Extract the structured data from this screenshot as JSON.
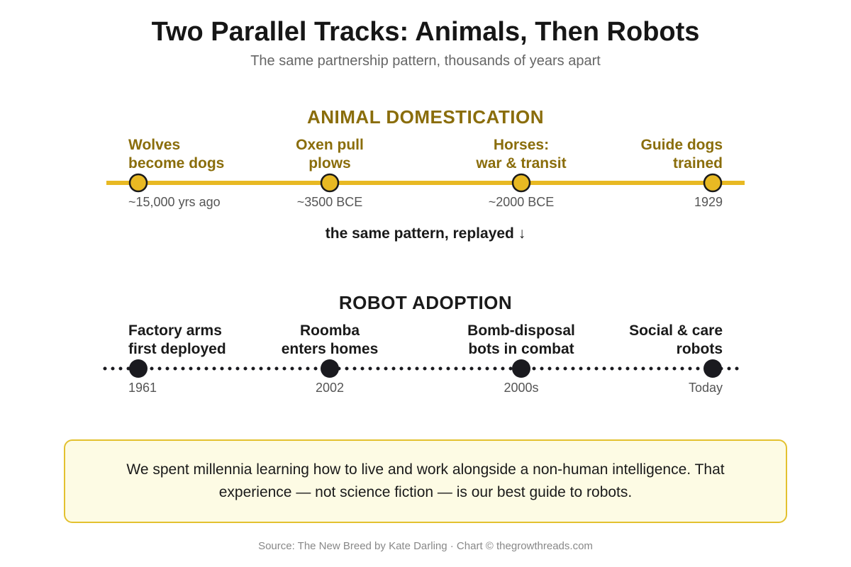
{
  "header": {
    "title": "Two Parallel Tracks: Animals, Then Robots",
    "subtitle": "The same partnership pattern, thousands of years apart"
  },
  "colors": {
    "animal_accent": "#e8b923",
    "animal_text": "#8a6d0b",
    "robot_accent": "#1a1a1f",
    "callout_bg": "#fdfbe4",
    "callout_border": "#e3c12f"
  },
  "animal_track": {
    "title": "ANIMAL DOMESTICATION",
    "events": [
      {
        "label": "Wolves\nbecome dogs",
        "date": "~15,000 yrs ago"
      },
      {
        "label": "Oxen pull\nplows",
        "date": "~3500 BCE"
      },
      {
        "label": "Horses:\nwar & transit",
        "date": "~2000 BCE"
      },
      {
        "label": "Guide dogs\ntrained",
        "date": "1929"
      }
    ]
  },
  "bridge_text": "the same pattern, replayed ↓",
  "robot_track": {
    "title": "ROBOT ADOPTION",
    "events": [
      {
        "label": "Factory arms\nfirst deployed",
        "date": "1961"
      },
      {
        "label": "Roomba\nenters homes",
        "date": "2002"
      },
      {
        "label": "Bomb-disposal\nbots in combat",
        "date": "2000s"
      },
      {
        "label": "Social & care\nrobots",
        "date": "Today"
      }
    ]
  },
  "callout": {
    "text": "We spent millennia learning how to live and work alongside a non-human intelligence. That experience — not science fiction — is our best guide to robots."
  },
  "footer": {
    "source": "Source: The New Breed by Kate Darling · Chart © thegrowthreads.com"
  }
}
